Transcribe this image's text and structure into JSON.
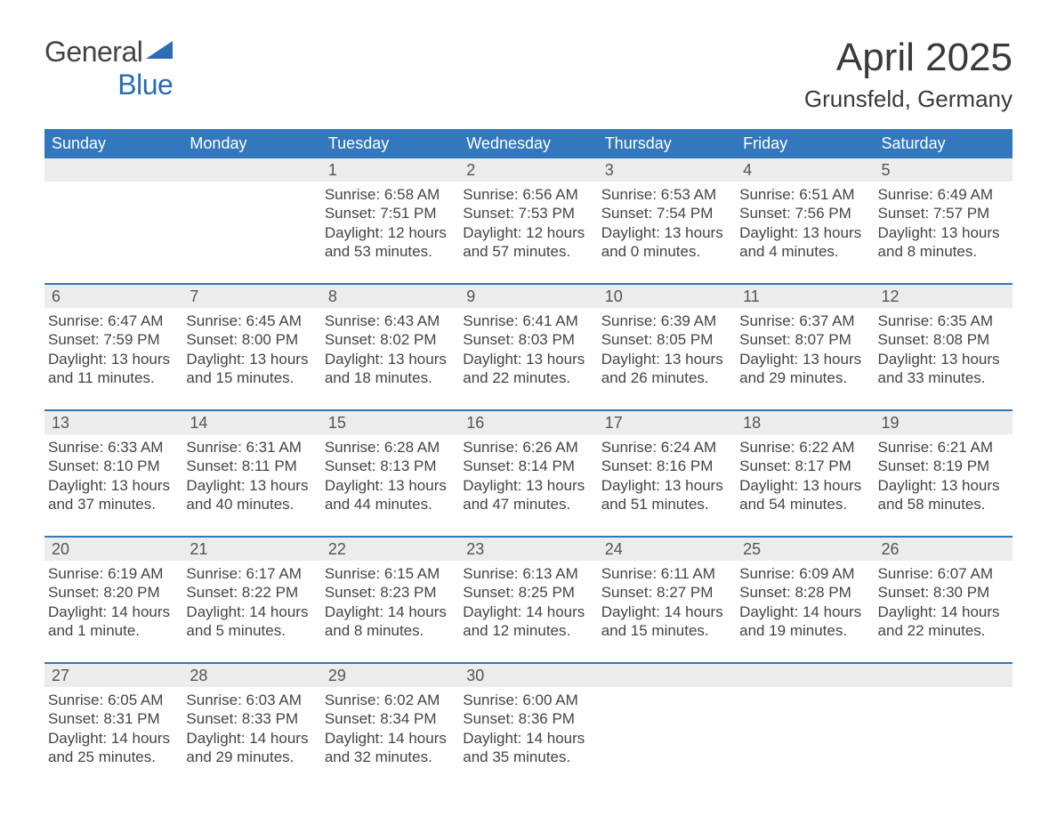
{
  "logo": {
    "top": "General",
    "bottom": "Blue"
  },
  "title": "April 2025",
  "location": "Grunsfeld, Germany",
  "colors": {
    "header_bg": "#3378bd",
    "header_text": "#ffffff",
    "daynum_bg": "#ececec",
    "daynum_text": "#555555",
    "body_text": "#444444",
    "week_divider": "#3378bd",
    "logo_blue": "#2b6cb5",
    "background": "#ffffff"
  },
  "fonts": {
    "title_size_pt": 33,
    "location_size_pt": 20,
    "header_size_pt": 14,
    "daynum_size_pt": 14,
    "body_size_pt": 13
  },
  "weekdays": [
    "Sunday",
    "Monday",
    "Tuesday",
    "Wednesday",
    "Thursday",
    "Friday",
    "Saturday"
  ],
  "weeks": [
    [
      {
        "n": "",
        "sunrise": "",
        "sunset": "",
        "daylight": ""
      },
      {
        "n": "",
        "sunrise": "",
        "sunset": "",
        "daylight": ""
      },
      {
        "n": "1",
        "sunrise": "Sunrise: 6:58 AM",
        "sunset": "Sunset: 7:51 PM",
        "daylight": "Daylight: 12 hours and 53 minutes."
      },
      {
        "n": "2",
        "sunrise": "Sunrise: 6:56 AM",
        "sunset": "Sunset: 7:53 PM",
        "daylight": "Daylight: 12 hours and 57 minutes."
      },
      {
        "n": "3",
        "sunrise": "Sunrise: 6:53 AM",
        "sunset": "Sunset: 7:54 PM",
        "daylight": "Daylight: 13 hours and 0 minutes."
      },
      {
        "n": "4",
        "sunrise": "Sunrise: 6:51 AM",
        "sunset": "Sunset: 7:56 PM",
        "daylight": "Daylight: 13 hours and 4 minutes."
      },
      {
        "n": "5",
        "sunrise": "Sunrise: 6:49 AM",
        "sunset": "Sunset: 7:57 PM",
        "daylight": "Daylight: 13 hours and 8 minutes."
      }
    ],
    [
      {
        "n": "6",
        "sunrise": "Sunrise: 6:47 AM",
        "sunset": "Sunset: 7:59 PM",
        "daylight": "Daylight: 13 hours and 11 minutes."
      },
      {
        "n": "7",
        "sunrise": "Sunrise: 6:45 AM",
        "sunset": "Sunset: 8:00 PM",
        "daylight": "Daylight: 13 hours and 15 minutes."
      },
      {
        "n": "8",
        "sunrise": "Sunrise: 6:43 AM",
        "sunset": "Sunset: 8:02 PM",
        "daylight": "Daylight: 13 hours and 18 minutes."
      },
      {
        "n": "9",
        "sunrise": "Sunrise: 6:41 AM",
        "sunset": "Sunset: 8:03 PM",
        "daylight": "Daylight: 13 hours and 22 minutes."
      },
      {
        "n": "10",
        "sunrise": "Sunrise: 6:39 AM",
        "sunset": "Sunset: 8:05 PM",
        "daylight": "Daylight: 13 hours and 26 minutes."
      },
      {
        "n": "11",
        "sunrise": "Sunrise: 6:37 AM",
        "sunset": "Sunset: 8:07 PM",
        "daylight": "Daylight: 13 hours and 29 minutes."
      },
      {
        "n": "12",
        "sunrise": "Sunrise: 6:35 AM",
        "sunset": "Sunset: 8:08 PM",
        "daylight": "Daylight: 13 hours and 33 minutes."
      }
    ],
    [
      {
        "n": "13",
        "sunrise": "Sunrise: 6:33 AM",
        "sunset": "Sunset: 8:10 PM",
        "daylight": "Daylight: 13 hours and 37 minutes."
      },
      {
        "n": "14",
        "sunrise": "Sunrise: 6:31 AM",
        "sunset": "Sunset: 8:11 PM",
        "daylight": "Daylight: 13 hours and 40 minutes."
      },
      {
        "n": "15",
        "sunrise": "Sunrise: 6:28 AM",
        "sunset": "Sunset: 8:13 PM",
        "daylight": "Daylight: 13 hours and 44 minutes."
      },
      {
        "n": "16",
        "sunrise": "Sunrise: 6:26 AM",
        "sunset": "Sunset: 8:14 PM",
        "daylight": "Daylight: 13 hours and 47 minutes."
      },
      {
        "n": "17",
        "sunrise": "Sunrise: 6:24 AM",
        "sunset": "Sunset: 8:16 PM",
        "daylight": "Daylight: 13 hours and 51 minutes."
      },
      {
        "n": "18",
        "sunrise": "Sunrise: 6:22 AM",
        "sunset": "Sunset: 8:17 PM",
        "daylight": "Daylight: 13 hours and 54 minutes."
      },
      {
        "n": "19",
        "sunrise": "Sunrise: 6:21 AM",
        "sunset": "Sunset: 8:19 PM",
        "daylight": "Daylight: 13 hours and 58 minutes."
      }
    ],
    [
      {
        "n": "20",
        "sunrise": "Sunrise: 6:19 AM",
        "sunset": "Sunset: 8:20 PM",
        "daylight": "Daylight: 14 hours and 1 minute."
      },
      {
        "n": "21",
        "sunrise": "Sunrise: 6:17 AM",
        "sunset": "Sunset: 8:22 PM",
        "daylight": "Daylight: 14 hours and 5 minutes."
      },
      {
        "n": "22",
        "sunrise": "Sunrise: 6:15 AM",
        "sunset": "Sunset: 8:23 PM",
        "daylight": "Daylight: 14 hours and 8 minutes."
      },
      {
        "n": "23",
        "sunrise": "Sunrise: 6:13 AM",
        "sunset": "Sunset: 8:25 PM",
        "daylight": "Daylight: 14 hours and 12 minutes."
      },
      {
        "n": "24",
        "sunrise": "Sunrise: 6:11 AM",
        "sunset": "Sunset: 8:27 PM",
        "daylight": "Daylight: 14 hours and 15 minutes."
      },
      {
        "n": "25",
        "sunrise": "Sunrise: 6:09 AM",
        "sunset": "Sunset: 8:28 PM",
        "daylight": "Daylight: 14 hours and 19 minutes."
      },
      {
        "n": "26",
        "sunrise": "Sunrise: 6:07 AM",
        "sunset": "Sunset: 8:30 PM",
        "daylight": "Daylight: 14 hours and 22 minutes."
      }
    ],
    [
      {
        "n": "27",
        "sunrise": "Sunrise: 6:05 AM",
        "sunset": "Sunset: 8:31 PM",
        "daylight": "Daylight: 14 hours and 25 minutes."
      },
      {
        "n": "28",
        "sunrise": "Sunrise: 6:03 AM",
        "sunset": "Sunset: 8:33 PM",
        "daylight": "Daylight: 14 hours and 29 minutes."
      },
      {
        "n": "29",
        "sunrise": "Sunrise: 6:02 AM",
        "sunset": "Sunset: 8:34 PM",
        "daylight": "Daylight: 14 hours and 32 minutes."
      },
      {
        "n": "30",
        "sunrise": "Sunrise: 6:00 AM",
        "sunset": "Sunset: 8:36 PM",
        "daylight": "Daylight: 14 hours and 35 minutes."
      },
      {
        "n": "",
        "sunrise": "",
        "sunset": "",
        "daylight": ""
      },
      {
        "n": "",
        "sunrise": "",
        "sunset": "",
        "daylight": ""
      },
      {
        "n": "",
        "sunrise": "",
        "sunset": "",
        "daylight": ""
      }
    ]
  ]
}
